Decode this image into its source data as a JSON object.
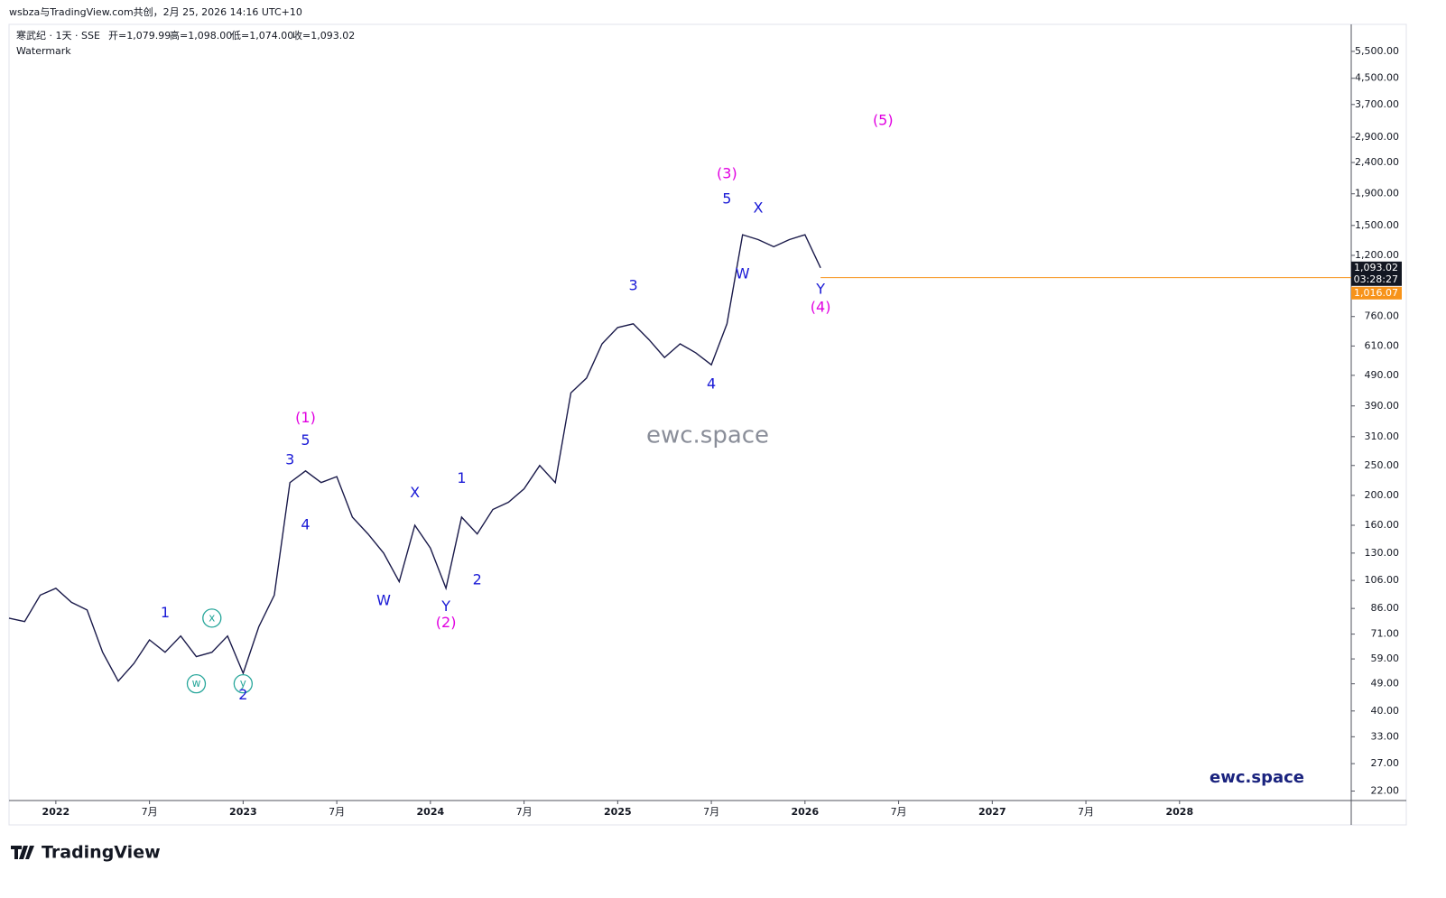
{
  "header": {
    "attribution": "wsbza与TradingView.com共创，2月 25, 2026 14:16 UTC+10",
    "symbol": "寒武纪 · 1天 · SSE",
    "ohlc": [
      "开=1,079.99",
      "高=1,098.00",
      "低=1,074.00",
      "收=1,093.02"
    ],
    "indicator": "Watermark",
    "brand": "TradingView"
  },
  "chart_data": {
    "type": "line",
    "color": "#1a1a4a",
    "log_scale": true,
    "grid": false,
    "x": [
      "2021-10",
      "2021-11",
      "2021-12",
      "2022-01",
      "2022-02",
      "2022-03",
      "2022-04",
      "2022-05",
      "2022-06",
      "2022-07",
      "2022-08",
      "2022-09",
      "2022-10",
      "2022-11",
      "2022-12",
      "2023-01",
      "2023-02",
      "2023-03",
      "2023-04",
      "2023-05",
      "2023-06",
      "2023-07",
      "2023-08",
      "2023-09",
      "2023-10",
      "2023-11",
      "2023-12",
      "2024-01",
      "2024-02",
      "2024-03",
      "2024-04",
      "2024-05",
      "2024-06",
      "2024-07",
      "2024-08",
      "2024-09",
      "2024-10",
      "2024-11",
      "2024-12",
      "2025-01",
      "2025-02",
      "2025-03",
      "2025-04",
      "2025-05",
      "2025-06",
      "2025-07",
      "2025-08",
      "2025-09",
      "2025-10",
      "2025-11",
      "2025-12",
      "2026-01",
      "2026-02"
    ],
    "values": [
      80,
      78,
      95,
      100,
      90,
      85,
      62,
      50,
      57,
      68,
      62,
      70,
      60,
      62,
      70,
      53,
      75,
      95,
      220,
      240,
      220,
      230,
      170,
      150,
      130,
      105,
      160,
      135,
      100,
      170,
      150,
      180,
      190,
      210,
      250,
      220,
      430,
      480,
      620,
      700,
      720,
      640,
      560,
      620,
      580,
      530,
      720,
      1400,
      1350,
      1280,
      1350,
      1400,
      1093
    ],
    "xlim": [
      "2021-10",
      "2028-12"
    ],
    "xticks": [
      {
        "value": "2022-01",
        "label": "2022"
      },
      {
        "value": "2022-07",
        "label": "7月"
      },
      {
        "value": "2023-01",
        "label": "2023"
      },
      {
        "value": "2023-07",
        "label": "7月"
      },
      {
        "value": "2024-01",
        "label": "2024"
      },
      {
        "value": "2024-07",
        "label": "7月"
      },
      {
        "value": "2025-01",
        "label": "2025"
      },
      {
        "value": "2025-07",
        "label": "7月"
      },
      {
        "value": "2026-01",
        "label": "2026"
      },
      {
        "value": "2026-07",
        "label": "7月"
      },
      {
        "value": "2027-01",
        "label": "2027"
      },
      {
        "value": "2027-07",
        "label": "7月"
      },
      {
        "value": "2028-01",
        "label": "2028"
      }
    ],
    "ylim": [
      20.5,
      6730
    ],
    "yticks": [
      {
        "value": 22,
        "label": "22.00"
      },
      {
        "value": 27,
        "label": "27.00"
      },
      {
        "value": 33,
        "label": "33.00"
      },
      {
        "value": 40,
        "label": "40.00"
      },
      {
        "value": 49,
        "label": "49.00"
      },
      {
        "value": 59,
        "label": "59.00"
      },
      {
        "value": 71,
        "label": "71.00"
      },
      {
        "value": 86,
        "label": "86.00"
      },
      {
        "value": 106,
        "label": "106.00"
      },
      {
        "value": 130,
        "label": "130.00"
      },
      {
        "value": 160,
        "label": "160.00"
      },
      {
        "value": 200,
        "label": "200.00"
      },
      {
        "value": 250,
        "label": "250.00"
      },
      {
        "value": 310,
        "label": "310.00"
      },
      {
        "value": 390,
        "label": "390.00"
      },
      {
        "value": 490,
        "label": "490.00"
      },
      {
        "value": 610,
        "label": "610.00"
      },
      {
        "value": 760,
        "label": "760.00"
      },
      {
        "value": 1200,
        "label": "1,200.00"
      },
      {
        "value": 1500,
        "label": "1,500.00"
      },
      {
        "value": 1900,
        "label": "1,900.00"
      },
      {
        "value": 2400,
        "label": "2,400.00"
      },
      {
        "value": 2900,
        "label": "2,900.00"
      },
      {
        "value": 3700,
        "label": "3,700.00"
      },
      {
        "value": 4500,
        "label": "4,500.00"
      },
      {
        "value": 5500,
        "label": "5,500.00"
      }
    ],
    "price_line": {
      "value": 1016.07,
      "label": "1,016.07",
      "color": "#f7931a"
    },
    "last_price": {
      "value": 1093.02,
      "label": "1,093.02",
      "countdown": "03:28:27",
      "color": "#131722"
    },
    "watermarks": [
      "ewc.space",
      "ewc.space"
    ],
    "annotations": [
      {
        "text": "1",
        "color": "#1a1ad6",
        "x": "2022-08",
        "y": 83
      },
      {
        "text": "x",
        "color": "#26a69a",
        "x": "2022-11",
        "y": 80,
        "circled": true
      },
      {
        "text": "w",
        "color": "#26a69a",
        "x": "2022-10",
        "y": 49,
        "circled": true
      },
      {
        "text": "y",
        "color": "#26a69a",
        "x": "2023-01",
        "y": 49,
        "circled": true
      },
      {
        "text": "2",
        "color": "#1a1ad6",
        "x": "2023-01",
        "y": 45
      },
      {
        "text": "3",
        "color": "#1a1ad6",
        "x": "2023-04",
        "y": 260
      },
      {
        "text": "5",
        "color": "#1a1ad6",
        "x": "2023-05",
        "y": 300
      },
      {
        "text": "(1)",
        "color": "#e100e1",
        "x": "2023-05",
        "y": 355
      },
      {
        "text": "4",
        "color": "#1a1ad6",
        "x": "2023-05",
        "y": 160
      },
      {
        "text": "W",
        "color": "#1a1ad6",
        "x": "2023-10",
        "y": 91
      },
      {
        "text": "X",
        "color": "#1a1ad6",
        "x": "2023-12",
        "y": 203
      },
      {
        "text": "Y",
        "color": "#1a1ad6",
        "x": "2024-02",
        "y": 87
      },
      {
        "text": "(2)",
        "color": "#e100e1",
        "x": "2024-02",
        "y": 77
      },
      {
        "text": "1",
        "color": "#1a1ad6",
        "x": "2024-03",
        "y": 226
      },
      {
        "text": "2",
        "color": "#1a1ad6",
        "x": "2024-04",
        "y": 106
      },
      {
        "text": "3",
        "color": "#1a1ad6",
        "x": "2025-02",
        "y": 953
      },
      {
        "text": "4",
        "color": "#1a1ad6",
        "x": "2025-07",
        "y": 458
      },
      {
        "text": "5",
        "color": "#1a1ad6",
        "x": "2025-08",
        "y": 1820
      },
      {
        "text": "(3)",
        "color": "#e100e1",
        "x": "2025-08",
        "y": 2200
      },
      {
        "text": "X",
        "color": "#1a1ad6",
        "x": "2025-10",
        "y": 1700
      },
      {
        "text": "W",
        "color": "#1a1ad6",
        "x": "2025-09",
        "y": 1040
      },
      {
        "text": "Y",
        "color": "#1a1ad6",
        "x": "2026-02",
        "y": 929
      },
      {
        "text": "(4)",
        "color": "#e100e1",
        "x": "2026-02",
        "y": 811
      },
      {
        "text": "(5)",
        "color": "#e100e1",
        "x": "2026-06",
        "y": 3270
      }
    ]
  }
}
